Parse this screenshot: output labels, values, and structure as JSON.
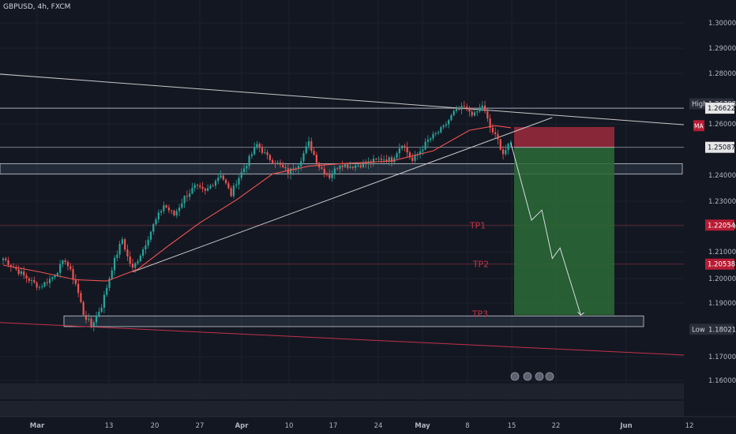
{
  "header": {
    "symbol_title": "GBPUSD, 4h, FXCM"
  },
  "chart_data": {
    "type": "candlestick",
    "symbol": "GBPUSD",
    "timeframe": "4h",
    "source": "FXCM",
    "ylim": [
      1.16,
      1.305
    ],
    "price_ticks": [
      "1.30000",
      "1.29000",
      "1.28000",
      "1.26000",
      "1.24000",
      "1.23000",
      "1.22000",
      "1.21000",
      "1.20000",
      "1.19000",
      "1.17000",
      "1.16000"
    ],
    "time_labels": [
      "Mar",
      "13",
      "20",
      "27",
      "Apr",
      "10",
      "17",
      "24",
      "May",
      "8",
      "15",
      "22",
      "Jun",
      "12"
    ],
    "price_markers": [
      {
        "label": "High",
        "value": "1.26798",
        "price": 1.26798,
        "style": "dark"
      },
      {
        "label": "",
        "value": "1.26622",
        "price": 1.26622,
        "style": "light"
      },
      {
        "label": "MA",
        "value": "",
        "price": 1.2593,
        "style": "red"
      },
      {
        "label": "",
        "value": "1.25087",
        "price": 1.25087,
        "style": "light"
      },
      {
        "label": "",
        "value": "1.22054",
        "price": 1.22054,
        "style": "red"
      },
      {
        "label": "",
        "value": "1.20538",
        "price": 1.20538,
        "style": "red"
      },
      {
        "label": "Low",
        "value": "1.18021",
        "price": 1.18021,
        "style": "dark"
      }
    ],
    "targets": [
      {
        "label": "TP1",
        "price": 1.22054
      },
      {
        "label": "TP2",
        "price": 1.20538
      },
      {
        "label": "TP3",
        "price": 1.186
      }
    ],
    "short_position": {
      "entry": 1.25087,
      "stop": 1.2588,
      "target": 1.1855
    },
    "anchors": [
      [
        0,
        1.2075
      ],
      [
        8,
        1.201
      ],
      [
        14,
        1.1965
      ],
      [
        19,
        1.2005
      ],
      [
        24,
        1.207
      ],
      [
        28,
        1.198
      ],
      [
        31,
        1.186
      ],
      [
        34,
        1.1815
      ],
      [
        38,
        1.189
      ],
      [
        42,
        1.204
      ],
      [
        46,
        1.215
      ],
      [
        48,
        1.208
      ],
      [
        50,
        1.2035
      ],
      [
        54,
        1.211
      ],
      [
        58,
        1.2205
      ],
      [
        62,
        1.2285
      ],
      [
        66,
        1.2245
      ],
      [
        70,
        1.2315
      ],
      [
        74,
        1.2355
      ],
      [
        78,
        1.2335
      ],
      [
        84,
        1.2405
      ],
      [
        88,
        1.2325
      ],
      [
        90,
        1.2375
      ],
      [
        94,
        1.2445
      ],
      [
        98,
        1.252
      ],
      [
        102,
        1.247
      ],
      [
        106,
        1.2445
      ],
      [
        110,
        1.241
      ],
      [
        114,
        1.2445
      ],
      [
        118,
        1.2525
      ],
      [
        122,
        1.2435
      ],
      [
        126,
        1.2395
      ],
      [
        130,
        1.2445
      ],
      [
        134,
        1.2435
      ],
      [
        140,
        1.2445
      ],
      [
        146,
        1.2465
      ],
      [
        150,
        1.246
      ],
      [
        154,
        1.2525
      ],
      [
        158,
        1.2455
      ],
      [
        164,
        1.2535
      ],
      [
        170,
        1.2585
      ],
      [
        174,
        1.2645
      ],
      [
        178,
        1.2665
      ],
      [
        182,
        1.2635
      ],
      [
        185,
        1.2675
      ],
      [
        188,
        1.2585
      ],
      [
        191,
        1.2535
      ],
      [
        193,
        1.2485
      ],
      [
        196,
        1.2525
      ]
    ],
    "moving_average": [
      [
        0,
        1.205
      ],
      [
        14,
        1.2025
      ],
      [
        28,
        1.1995
      ],
      [
        40,
        1.199
      ],
      [
        52,
        1.2035
      ],
      [
        64,
        1.2125
      ],
      [
        76,
        1.2215
      ],
      [
        90,
        1.2305
      ],
      [
        104,
        1.2405
      ],
      [
        118,
        1.2435
      ],
      [
        130,
        1.2445
      ],
      [
        150,
        1.2455
      ],
      [
        166,
        1.2495
      ],
      [
        180,
        1.2575
      ],
      [
        190,
        1.2593
      ],
      [
        196,
        1.2585
      ]
    ],
    "trendlines": [
      {
        "name": "descending-resistance",
        "from": [
          -38,
          1.2825
        ],
        "to": [
          265,
          1.2595
        ]
      },
      {
        "name": "ascending-support",
        "from": [
          50,
          1.2025
        ],
        "to": [
          212,
          1.2625
        ]
      },
      {
        "name": "lower-channel",
        "from": [
          -40,
          1.1845
        ],
        "to": [
          265,
          1.1705
        ]
      }
    ],
    "horizontal_lines": [
      1.26622,
      1.25087,
      1.22054,
      1.20538
    ],
    "zones": [
      {
        "name": "resistance-zone",
        "top": 1.2445,
        "bottom": 1.2405
      },
      {
        "name": "support-zone",
        "top": 1.1852,
        "bottom": 1.1812
      }
    ],
    "projection": [
      [
        196,
        1.2525
      ],
      [
        204,
        1.2225
      ],
      [
        208,
        1.2265
      ],
      [
        212,
        1.2075
      ],
      [
        215,
        1.2115
      ],
      [
        223,
        1.1855
      ]
    ],
    "colors": {
      "background": "#131722",
      "grid": "#1e222d",
      "up": "#26a69a",
      "down": "#ef5350",
      "ma": "#ef5350",
      "trend": "#c8c8c8",
      "loss": "#9c2a3c",
      "profit": "#2c6b36",
      "text": "#d1d4dc"
    }
  }
}
